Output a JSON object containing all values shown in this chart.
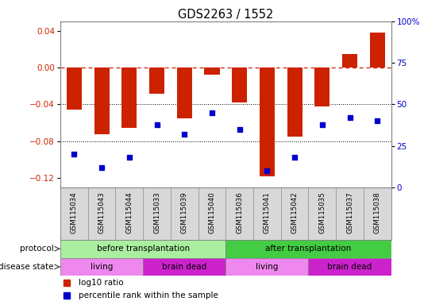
{
  "title": "GDS2263 / 1552",
  "samples": [
    "GSM115034",
    "GSM115043",
    "GSM115044",
    "GSM115033",
    "GSM115039",
    "GSM115040",
    "GSM115036",
    "GSM115041",
    "GSM115042",
    "GSM115035",
    "GSM115037",
    "GSM115038"
  ],
  "log10_ratio": [
    -0.046,
    -0.072,
    -0.065,
    -0.028,
    -0.055,
    -0.008,
    -0.038,
    -0.118,
    -0.075,
    -0.042,
    0.015,
    0.038
  ],
  "percentile_rank": [
    20,
    12,
    18,
    38,
    32,
    45,
    35,
    10,
    18,
    38,
    42,
    40
  ],
  "ylim_left": [
    -0.13,
    0.05
  ],
  "ylim_right": [
    0,
    100
  ],
  "yticks_left": [
    -0.12,
    -0.08,
    -0.04,
    0,
    0.04
  ],
  "yticks_right": [
    0,
    25,
    50,
    75,
    100
  ],
  "bar_color": "#cc2200",
  "dot_color": "#0000cc",
  "before_color": "#aaeea0",
  "after_color": "#44cc44",
  "living_color": "#ee88ee",
  "braindead_color": "#cc22cc",
  "label_bg_color": "#d8d8d8",
  "border_color": "#888888",
  "n_samples": 12,
  "protocol_regions": [
    [
      0,
      6,
      "before transplantation",
      "#aaeea0"
    ],
    [
      6,
      12,
      "after transplantation",
      "#44cc44"
    ]
  ],
  "disease_regions": [
    [
      0,
      3,
      "living",
      "#ee88ee"
    ],
    [
      3,
      6,
      "brain dead",
      "#cc22cc"
    ],
    [
      6,
      9,
      "living",
      "#ee88ee"
    ],
    [
      9,
      12,
      "brain dead",
      "#cc22cc"
    ]
  ]
}
